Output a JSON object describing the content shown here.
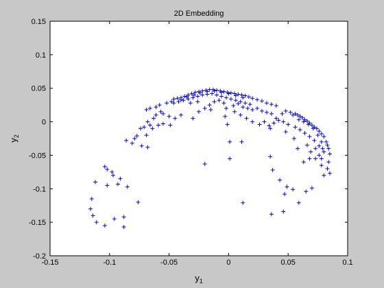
{
  "chart_data": {
    "type": "scatter",
    "title": "2D Embedding",
    "xlabel": {
      "base": "y",
      "sub": "1"
    },
    "ylabel": {
      "base": "y",
      "sub": "2"
    },
    "xlim": [
      -0.15,
      0.1
    ],
    "ylim": [
      -0.2,
      0.15
    ],
    "xticks": [
      "-0.15",
      "-0.1",
      "-0.05",
      "0",
      "0.05",
      "0.1"
    ],
    "yticks": [
      "-0.2",
      "-0.15",
      "-0.1",
      "-0.05",
      "0",
      "0.05",
      "0.1",
      "0.15"
    ],
    "xtick_values": [
      -0.15,
      -0.1,
      -0.05,
      0,
      0.05,
      0.1
    ],
    "ytick_values": [
      -0.2,
      -0.15,
      -0.1,
      -0.05,
      0,
      0.05,
      0.1,
      0.15
    ],
    "grid": false,
    "marker": "+",
    "marker_color": "#0000ff",
    "points": [
      [
        -0.115,
        -0.115
      ],
      [
        -0.116,
        -0.13
      ],
      [
        -0.114,
        -0.14
      ],
      [
        -0.111,
        -0.15
      ],
      [
        -0.104,
        -0.155
      ],
      [
        -0.096,
        -0.145
      ],
      [
        -0.088,
        -0.142
      ],
      [
        -0.088,
        -0.157
      ],
      [
        -0.112,
        -0.09
      ],
      [
        -0.102,
        -0.095
      ],
      [
        -0.104,
        -0.067
      ],
      [
        -0.102,
        -0.071
      ],
      [
        -0.098,
        -0.075
      ],
      [
        -0.097,
        -0.08
      ],
      [
        -0.093,
        -0.093
      ],
      [
        -0.091,
        -0.085
      ],
      [
        -0.085,
        -0.097
      ],
      [
        -0.076,
        -0.12
      ],
      [
        -0.086,
        -0.028
      ],
      [
        -0.081,
        -0.032
      ],
      [
        -0.079,
        -0.025
      ],
      [
        -0.077,
        -0.021
      ],
      [
        -0.073,
        -0.036
      ],
      [
        -0.068,
        -0.038
      ],
      [
        -0.074,
        -0.01
      ],
      [
        -0.071,
        -0.008
      ],
      [
        -0.066,
        -0.005
      ],
      [
        -0.069,
        -0.02
      ],
      [
        -0.064,
        -0.01
      ],
      [
        -0.059,
        -0.005
      ],
      [
        -0.055,
        -0.003
      ],
      [
        -0.049,
        -0.005
      ],
      [
        -0.068,
        0.0
      ],
      [
        -0.063,
        0.005
      ],
      [
        -0.061,
        0.01
      ],
      [
        -0.057,
        0.015
      ],
      [
        -0.069,
        0.018
      ],
      [
        -0.066,
        0.02
      ],
      [
        -0.061,
        0.022
      ],
      [
        -0.058,
        0.025
      ],
      [
        -0.052,
        0.028
      ],
      [
        -0.048,
        0.03
      ],
      [
        -0.046,
        0.034
      ],
      [
        -0.043,
        0.035
      ],
      [
        -0.04,
        0.036
      ],
      [
        -0.037,
        0.038
      ],
      [
        -0.034,
        0.04
      ],
      [
        -0.031,
        0.042
      ],
      [
        -0.028,
        0.044
      ],
      [
        -0.025,
        0.045
      ],
      [
        -0.022,
        0.046
      ],
      [
        -0.019,
        0.047
      ],
      [
        -0.016,
        0.048
      ],
      [
        -0.013,
        0.048
      ],
      [
        -0.01,
        0.047
      ],
      [
        -0.007,
        0.046
      ],
      [
        -0.004,
        0.045
      ],
      [
        -0.001,
        0.044
      ],
      [
        0.002,
        0.043
      ],
      [
        0.005,
        0.042
      ],
      [
        0.008,
        0.041
      ],
      [
        0.011,
        0.04
      ],
      [
        0.014,
        0.039
      ],
      [
        0.017,
        0.037
      ],
      [
        0.02,
        0.035
      ],
      [
        0.024,
        0.033
      ],
      [
        0.028,
        0.031
      ],
      [
        0.032,
        0.028
      ],
      [
        0.036,
        0.026
      ],
      [
        0.04,
        0.024
      ],
      [
        -0.046,
        0.028
      ],
      [
        -0.042,
        0.03
      ],
      [
        -0.038,
        0.032
      ],
      [
        -0.034,
        0.034
      ],
      [
        -0.03,
        0.036
      ],
      [
        -0.026,
        0.038
      ],
      [
        -0.022,
        0.04
      ],
      [
        -0.018,
        0.041
      ],
      [
        -0.014,
        0.042
      ],
      [
        -0.01,
        0.04
      ],
      [
        -0.006,
        0.038
      ],
      [
        -0.002,
        0.036
      ],
      [
        0.002,
        0.034
      ],
      [
        0.006,
        0.032
      ],
      [
        0.01,
        0.03
      ],
      [
        0.014,
        0.028
      ],
      [
        0.018,
        0.026
      ],
      [
        -0.04,
        0.033
      ],
      [
        -0.035,
        0.037
      ],
      [
        -0.029,
        0.04
      ],
      [
        -0.024,
        0.043
      ],
      [
        -0.018,
        0.045
      ],
      [
        -0.012,
        0.046
      ],
      [
        -0.006,
        0.044
      ],
      [
        0.0,
        0.042
      ],
      [
        0.006,
        0.039
      ],
      [
        0.012,
        0.036
      ],
      [
        -0.032,
        0.028
      ],
      [
        -0.026,
        0.03
      ],
      [
        -0.02,
        0.02
      ],
      [
        -0.016,
        0.025
      ],
      [
        -0.012,
        0.03
      ],
      [
        -0.008,
        0.032
      ],
      [
        -0.004,
        0.028
      ],
      [
        0.004,
        0.024
      ],
      [
        0.008,
        0.027
      ],
      [
        0.012,
        0.022
      ],
      [
        0.016,
        0.02
      ],
      [
        0.02,
        0.018
      ],
      [
        0.024,
        0.02
      ],
      [
        0.028,
        0.016
      ],
      [
        0.032,
        0.014
      ],
      [
        0.036,
        0.012
      ],
      [
        -0.025,
        0.015
      ],
      [
        -0.015,
        0.018
      ],
      [
        -0.04,
        0.01
      ],
      [
        -0.045,
        0.005
      ],
      [
        -0.03,
        0.005
      ],
      [
        -0.05,
        0.008
      ],
      [
        -0.055,
        0.012
      ],
      [
        -0.002,
        0.02
      ],
      [
        0.005,
        0.015
      ],
      [
        0.01,
        0.01
      ],
      [
        0.015,
        0.005
      ],
      [
        0.02,
        0.0
      ],
      [
        -0.003,
        0.008
      ],
      [
        -0.001,
        -0.004
      ],
      [
        0.03,
        0.0
      ],
      [
        0.04,
        0.005
      ],
      [
        0.045,
        0.012
      ],
      [
        0.048,
        0.016
      ],
      [
        0.052,
        0.014
      ],
      [
        0.056,
        0.012
      ],
      [
        0.058,
        0.01
      ],
      [
        0.06,
        0.008
      ],
      [
        0.062,
        0.006
      ],
      [
        0.064,
        0.003
      ],
      [
        0.066,
        0.001
      ],
      [
        0.068,
        -0.002
      ],
      [
        0.07,
        -0.005
      ],
      [
        0.072,
        -0.008
      ],
      [
        0.074,
        -0.01
      ],
      [
        0.076,
        -0.014
      ],
      [
        0.078,
        -0.018
      ],
      [
        0.08,
        -0.022
      ],
      [
        0.082,
        -0.03
      ],
      [
        0.083,
        -0.035
      ],
      [
        0.084,
        -0.04
      ],
      [
        0.085,
        -0.048
      ],
      [
        0.084,
        -0.06
      ],
      [
        0.083,
        -0.07
      ],
      [
        0.085,
        -0.077
      ],
      [
        0.08,
        -0.08
      ],
      [
        0.054,
        0.01
      ],
      [
        0.059,
        0.003
      ],
      [
        0.063,
        0.0
      ],
      [
        0.067,
        -0.004
      ],
      [
        0.071,
        -0.01
      ],
      [
        0.075,
        -0.02
      ],
      [
        0.078,
        -0.03
      ],
      [
        0.079,
        -0.04
      ],
      [
        0.08,
        -0.045
      ],
      [
        0.076,
        -0.036
      ],
      [
        0.072,
        -0.028
      ],
      [
        0.068,
        -0.022
      ],
      [
        0.064,
        -0.017
      ],
      [
        0.06,
        -0.012
      ],
      [
        0.056,
        -0.008
      ],
      [
        0.05,
        -0.004
      ],
      [
        0.046,
        0.0
      ],
      [
        0.042,
        0.002
      ],
      [
        0.038,
        -0.002
      ],
      [
        0.034,
        -0.006
      ],
      [
        0.066,
        -0.035
      ],
      [
        0.069,
        -0.045
      ],
      [
        0.073,
        -0.055
      ],
      [
        0.063,
        -0.06
      ],
      [
        0.058,
        -0.04
      ],
      [
        0.055,
        -0.025
      ],
      [
        0.048,
        -0.015
      ],
      [
        0.073,
        -0.04
      ],
      [
        0.076,
        -0.05
      ],
      [
        0.078,
        -0.055
      ],
      [
        -0.02,
        -0.063
      ],
      [
        0.001,
        -0.055
      ],
      [
        0.001,
        -0.03
      ],
      [
        0.011,
        -0.03
      ],
      [
        0.012,
        -0.121
      ],
      [
        0.036,
        -0.138
      ],
      [
        0.046,
        -0.134
      ],
      [
        0.035,
        -0.052
      ],
      [
        0.037,
        -0.072
      ],
      [
        0.043,
        -0.087
      ],
      [
        0.047,
        -0.108
      ],
      [
        0.049,
        -0.097
      ],
      [
        0.054,
        -0.101
      ],
      [
        0.059,
        -0.121
      ],
      [
        0.065,
        -0.104
      ],
      [
        0.07,
        -0.099
      ],
      [
        0.068,
        -0.055
      ],
      [
        0.078,
        -0.065
      ],
      [
        0.035,
        -0.01
      ],
      [
        0.026,
        -0.004
      ]
    ]
  }
}
